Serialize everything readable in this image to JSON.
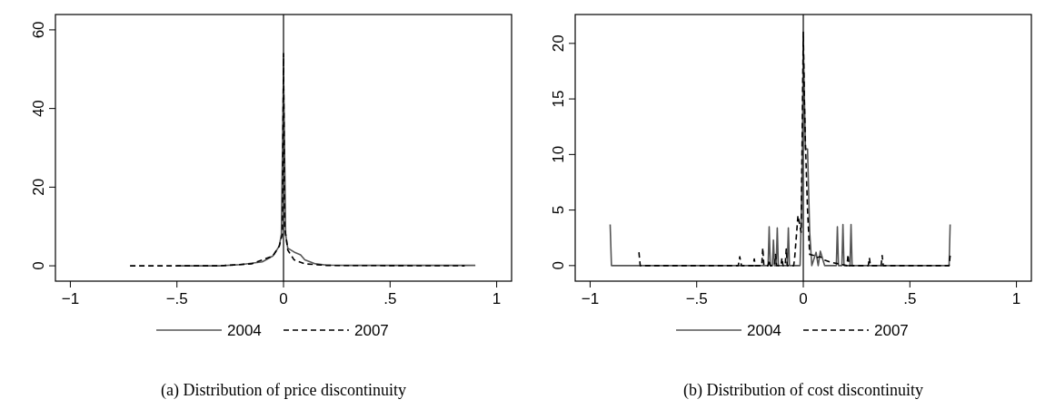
{
  "chart_data": [
    {
      "type": "line",
      "title": "(a) Distribution of price discontinuity",
      "xlim": [
        -1.07,
        1.07
      ],
      "ylim": [
        -3.9,
        63.9
      ],
      "xticks": [
        {
          "value": -1,
          "label": "−1"
        },
        {
          "value": -0.5,
          "label": "−.5"
        },
        {
          "value": 0,
          "label": "0"
        },
        {
          "value": 0.5,
          "label": ".5"
        },
        {
          "value": 1,
          "label": "1"
        }
      ],
      "yticks": [
        0,
        20,
        40,
        60
      ],
      "legend": "bottom",
      "grid": false,
      "ref_lines": [
        {
          "axis": "x",
          "value": 0,
          "color": "#000000"
        }
      ],
      "series": [
        {
          "name": "2004",
          "color": "#555555",
          "line_style": "solid",
          "x": [
            -0.5,
            -0.3,
            -0.2,
            -0.1,
            -0.05,
            -0.02,
            -0.01,
            0,
            0.01,
            0.02,
            0.05,
            0.08,
            0.1,
            0.15,
            0.2,
            0.3,
            0.9
          ],
          "values": [
            0,
            0,
            0.3,
            1,
            2.5,
            5,
            8,
            50,
            8,
            4.5,
            3.5,
            2.8,
            1.5,
            0.5,
            0.2,
            0.1,
            0.1
          ]
        },
        {
          "name": "2007",
          "color": "#000000",
          "line_style": "dashed",
          "x": [
            -0.72,
            -0.3,
            -0.15,
            -0.05,
            -0.02,
            -0.005,
            0,
            0.005,
            0.02,
            0.05,
            0.1,
            0.2,
            0.85
          ],
          "values": [
            0,
            0,
            0.5,
            2.5,
            5,
            8,
            54,
            10,
            4,
            1.5,
            0.5,
            0.1,
            0
          ]
        }
      ]
    },
    {
      "type": "line",
      "title": "(b) Distribution of cost discontinuity",
      "xlim": [
        -1.07,
        1.07
      ],
      "ylim": [
        -1.4,
        22.6
      ],
      "xticks": [
        {
          "value": -1,
          "label": "−1"
        },
        {
          "value": -0.5,
          "label": "−.5"
        },
        {
          "value": 0,
          "label": "0"
        },
        {
          "value": 0.5,
          "label": ".5"
        },
        {
          "value": 1,
          "label": "1"
        }
      ],
      "yticks": [
        0,
        5,
        10,
        15,
        20
      ],
      "legend": "bottom",
      "grid": false,
      "ref_lines": [
        {
          "axis": "x",
          "value": 0,
          "color": "#000000"
        }
      ],
      "series": [
        {
          "name": "2004",
          "color": "#555555",
          "line_style": "solid",
          "x": [
            -0.906,
            -0.9,
            -0.165,
            -0.16,
            -0.155,
            -0.145,
            -0.14,
            -0.135,
            -0.127,
            -0.122,
            -0.117,
            -0.075,
            -0.07,
            -0.065,
            -0.015,
            -0.005,
            0,
            0.01,
            0.02,
            0.03,
            0.04,
            0.06,
            0.07,
            0.08,
            0.1,
            0.155,
            0.16,
            0.165,
            0.181,
            0.186,
            0.191,
            0.219,
            0.224,
            0.229,
            0.684,
            0.689
          ],
          "values": [
            3.7,
            0,
            0,
            3.5,
            0,
            0,
            2.3,
            0,
            0,
            3.4,
            0,
            0,
            3.4,
            0,
            0,
            8,
            20,
            10.5,
            10.5,
            3,
            0,
            1.2,
            0,
            1.3,
            0,
            0,
            3.5,
            0,
            0,
            3.7,
            0,
            0,
            3.7,
            0,
            0,
            3.7
          ]
        },
        {
          "name": "2007",
          "color": "#000000",
          "line_style": "dashed",
          "x": [
            -0.771,
            -0.765,
            -0.305,
            -0.298,
            -0.29,
            -0.235,
            -0.23,
            -0.225,
            -0.195,
            -0.19,
            -0.185,
            -0.165,
            -0.16,
            -0.155,
            -0.135,
            -0.13,
            -0.125,
            -0.105,
            -0.1,
            -0.095,
            -0.085,
            -0.08,
            -0.075,
            -0.045,
            -0.04,
            -0.025,
            -0.01,
            0,
            0.005,
            0.01,
            0.02,
            0.03,
            0.05,
            0.06,
            0.08,
            0.1,
            0.13,
            0.205,
            0.21,
            0.215,
            0.305,
            0.31,
            0.315,
            0.365,
            0.37,
            0.375,
            0.684,
            0.689
          ],
          "values": [
            1.2,
            0,
            0,
            0.8,
            0,
            0,
            0.6,
            0,
            0,
            1.6,
            0,
            0,
            0.5,
            0,
            0,
            1,
            0,
            0,
            0.7,
            0,
            0,
            1.5,
            0,
            0,
            0.8,
            4.5,
            3,
            21,
            15,
            11,
            5,
            1,
            0.9,
            0.7,
            0.8,
            0.5,
            0.3,
            0,
            1,
            0,
            0,
            0.7,
            0,
            0,
            0.9,
            0,
            0,
            0.9
          ]
        }
      ]
    }
  ]
}
